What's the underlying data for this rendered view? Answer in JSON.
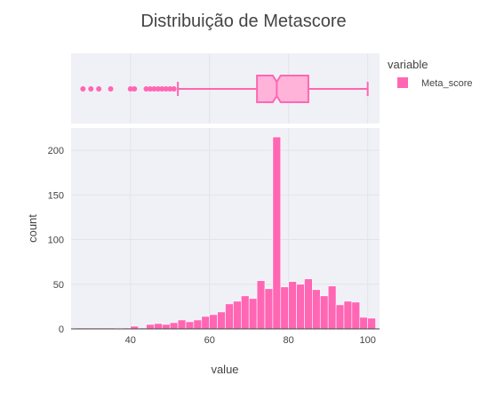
{
  "chart_data": {
    "type": "histogram",
    "title": "Distribuição de Metascore",
    "xlabel": "value",
    "ylabel": "count",
    "xlim": [
      25,
      103
    ],
    "ylim": [
      0,
      225
    ],
    "x_ticks": [
      40,
      60,
      80,
      100
    ],
    "y_ticks": [
      0,
      50,
      100,
      150,
      200
    ],
    "grid": true,
    "legend": {
      "title": "variable",
      "placement": "top-right",
      "entries": [
        {
          "name": "Meta_score",
          "color": "#ff66b3"
        }
      ]
    },
    "colors": {
      "bar": "#ff66b3",
      "bar_stroke": "#ffffff",
      "box_fill": "#ffb3d9",
      "box_line": "#ff66b3",
      "panel_bg": "#e5ecf6",
      "plot_bg": "#f0f1f6"
    },
    "histogram": {
      "bin_width": 2,
      "bin_starts": [
        24,
        26,
        28,
        30,
        32,
        34,
        36,
        38,
        40,
        42,
        44,
        46,
        48,
        50,
        52,
        54,
        56,
        58,
        60,
        62,
        64,
        66,
        68,
        70,
        72,
        74,
        76,
        78,
        80,
        82,
        84,
        86,
        88,
        90,
        92,
        94,
        96,
        98,
        100
      ],
      "counts": [
        0,
        1,
        1,
        1,
        1,
        1,
        0,
        1,
        3,
        1,
        5,
        6,
        5,
        7,
        10,
        8,
        10,
        14,
        16,
        19,
        28,
        31,
        37,
        34,
        54,
        45,
        215,
        47,
        53,
        50,
        56,
        44,
        37,
        48,
        27,
        31,
        30,
        13,
        12
      ]
    },
    "box": {
      "min": 52,
      "q1": 72,
      "median": 77,
      "q3": 85,
      "max": 100,
      "notch_low": 76,
      "notch_high": 78,
      "outliers": [
        28,
        30,
        32,
        35,
        40,
        41,
        44,
        45,
        46,
        47,
        48,
        49,
        50,
        51
      ]
    }
  }
}
